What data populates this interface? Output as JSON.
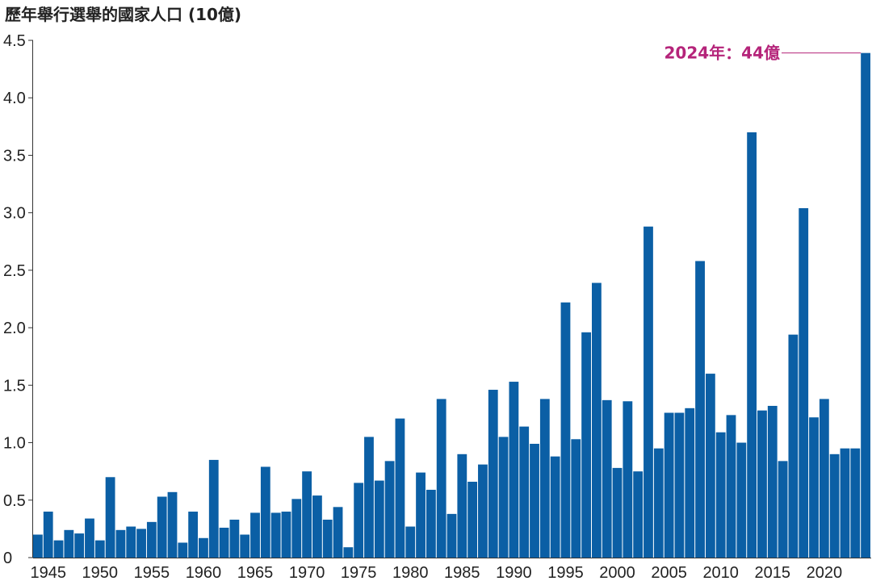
{
  "chart_data": {
    "type": "bar",
    "title": "歷年舉行選舉的國家人口 (10億)",
    "xlabel": "",
    "ylabel": "",
    "ylim": [
      0,
      4.5
    ],
    "y_ticks": [
      "0",
      "0.5",
      "1.0",
      "1.5",
      "2.0",
      "2.5",
      "3.0",
      "3.5",
      "4.0",
      "4.5"
    ],
    "x_ticks": [
      "1945",
      "1950",
      "1955",
      "1960",
      "1965",
      "1970",
      "1975",
      "1980",
      "1985",
      "1990",
      "1995",
      "2000",
      "2005",
      "2010",
      "2015",
      "2020"
    ],
    "grid": false,
    "bar_color": "#0b5fa5",
    "categories": [
      1944,
      1945,
      1946,
      1947,
      1948,
      1949,
      1950,
      1951,
      1952,
      1953,
      1954,
      1955,
      1956,
      1957,
      1958,
      1959,
      1960,
      1961,
      1962,
      1963,
      1964,
      1965,
      1966,
      1967,
      1968,
      1969,
      1970,
      1971,
      1972,
      1973,
      1974,
      1975,
      1976,
      1977,
      1978,
      1979,
      1980,
      1981,
      1982,
      1983,
      1984,
      1985,
      1986,
      1987,
      1988,
      1989,
      1990,
      1991,
      1992,
      1993,
      1994,
      1995,
      1996,
      1997,
      1998,
      1999,
      2000,
      2001,
      2002,
      2003,
      2004,
      2005,
      2006,
      2007,
      2008,
      2009,
      2010,
      2011,
      2012,
      2013,
      2014,
      2015,
      2016,
      2017,
      2018,
      2019,
      2020,
      2021,
      2022,
      2023,
      2024
    ],
    "values": [
      0.2,
      0.4,
      0.15,
      0.24,
      0.21,
      0.34,
      0.15,
      0.7,
      0.24,
      0.27,
      0.25,
      0.31,
      0.53,
      0.57,
      0.13,
      0.4,
      0.17,
      0.85,
      0.26,
      0.33,
      0.2,
      0.39,
      0.79,
      0.39,
      0.4,
      0.51,
      0.75,
      0.54,
      0.33,
      0.44,
      0.09,
      0.65,
      1.05,
      0.67,
      0.84,
      1.21,
      0.27,
      0.74,
      0.59,
      1.38,
      0.38,
      0.9,
      0.66,
      0.81,
      1.46,
      1.05,
      1.53,
      1.14,
      0.99,
      1.38,
      0.88,
      2.22,
      1.03,
      1.96,
      2.39,
      1.37,
      0.78,
      1.36,
      0.75,
      2.88,
      0.95,
      1.26,
      1.26,
      1.3,
      2.58,
      1.6,
      1.09,
      1.24,
      1.0,
      3.7,
      1.28,
      1.32,
      0.84,
      1.94,
      3.04,
      1.22,
      1.38,
      0.9,
      0.95,
      0.95,
      4.39
    ],
    "annotation": {
      "text": "2024年：44億",
      "color": "#b5247a"
    }
  }
}
